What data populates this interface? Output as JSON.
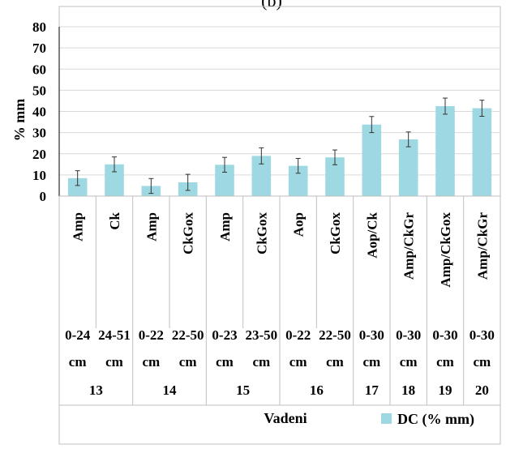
{
  "panel_label": "(b)",
  "chart_data": {
    "type": "bar",
    "title": "",
    "ylabel": "% mm",
    "xlabel": "Vadeni",
    "ylim": [
      0,
      80
    ],
    "yticks": [
      0,
      10,
      20,
      30,
      40,
      50,
      60,
      70,
      80
    ],
    "grid": true,
    "legend_position": "bottom-right",
    "categories": [
      "Amp",
      "Ck",
      "Amp",
      "CkGox",
      "Amp",
      "CkGox",
      "Aop",
      "CkGox",
      "Aop/Ck",
      "Amp/CkGr",
      "Amp/CkGox",
      "Amp/CkGr"
    ],
    "depth_top": [
      "0-24",
      "24-51",
      "0-22",
      "22-50",
      "0-23",
      "23-50",
      "0-22",
      "22-50",
      "0-30",
      "0-30",
      "0-30",
      "0-30"
    ],
    "depth_unit": "cm",
    "profile_groups": [
      {
        "label": "13",
        "span": 2
      },
      {
        "label": "14",
        "span": 2
      },
      {
        "label": "15",
        "span": 2
      },
      {
        "label": "16",
        "span": 2
      },
      {
        "label": "17",
        "span": 1
      },
      {
        "label": "18",
        "span": 1
      },
      {
        "label": "19",
        "span": 1
      },
      {
        "label": "20",
        "span": 1
      }
    ],
    "series": [
      {
        "name": "DC (% mm)",
        "color": "#9ed8e2",
        "values": [
          8.5,
          15,
          4.8,
          6.5,
          14.8,
          19,
          14.3,
          18.3,
          33.8,
          26.8,
          42.5,
          41.5
        ],
        "error": [
          3.5,
          3.5,
          3.5,
          3.8,
          3.5,
          3.8,
          3.5,
          3.5,
          3.8,
          3.5,
          3.8,
          3.8
        ]
      }
    ]
  }
}
